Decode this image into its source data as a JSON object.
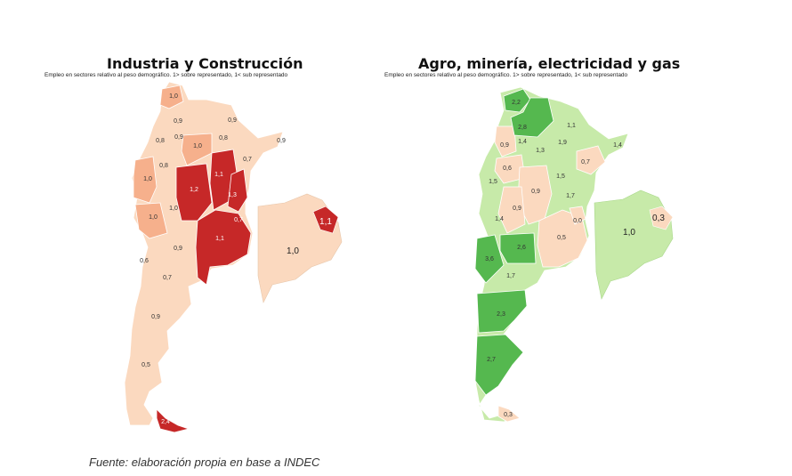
{
  "maps": [
    {
      "title": "Industria y Construcción",
      "subtitle": "Empleo en sectores relativo al peso demográfico. 1> sobre representado, 1< sub representado",
      "colors": {
        "low": "#fbd9bf",
        "mid": "#f6b08c",
        "high": "#c62828"
      },
      "regions": {
        "jujuy": "1,0",
        "salta": "0,9",
        "formosa": "0,9",
        "catamarca": "0,8",
        "tucuman": "0,9",
        "chaco": "0,8",
        "misiones": "0,9",
        "larioja": "0,8",
        "sgo_estero": "1,0",
        "corrientes": "0,7",
        "sanjuan": "1,0",
        "cordoba": "1,2",
        "santafe": "1,1",
        "entrerios": "1,3",
        "mendoza": "1,0",
        "sanluis": "1,0",
        "bsas": "1,1",
        "caba": "0,7",
        "lapampa": "0,9",
        "neuquen": "0,6",
        "rionegro": "0,7",
        "chubut": "0,9",
        "santacruz": "0,5",
        "tierradelfuego": "2,4",
        "amba_conurbano": "1,1",
        "amba_interior": "1,0"
      }
    },
    {
      "title": "Agro, minería, electricidad y gas",
      "subtitle": "Empleo en sectores relativo al peso demográfico. 1> sobre representado, 1< sub representado",
      "colors": {
        "low": "#fbd9bf",
        "light": "#c7eaa9",
        "dark": "#55b84f"
      },
      "regions": {
        "jujuy": "2,2",
        "salta": "2,8",
        "formosa": "1,1",
        "catamarca": "0,9",
        "tucuman": "1,4",
        "chaco": "1,9",
        "misiones": "1,4",
        "larioja": "1,3",
        "sgo_estero": "0,6",
        "corrientes": "0,7",
        "sanjuan": "1,5",
        "cordoba": "0,9",
        "santafe": "1,5",
        "entrerios": "1,7",
        "mendoza": "1,4",
        "sanluis": "0,9",
        "bsas": "0,5",
        "caba": "0,0",
        "lapampa": "2,6",
        "neuquen": "3,6",
        "rionegro": "1,7",
        "chubut": "2,3",
        "santacruz": "2,7",
        "tierradelfuego": "0,3",
        "amba_conurbano": "0,3",
        "amba_interior": "1,0"
      }
    }
  ],
  "source": "Fuente: elaboración propia en base a INDEC"
}
